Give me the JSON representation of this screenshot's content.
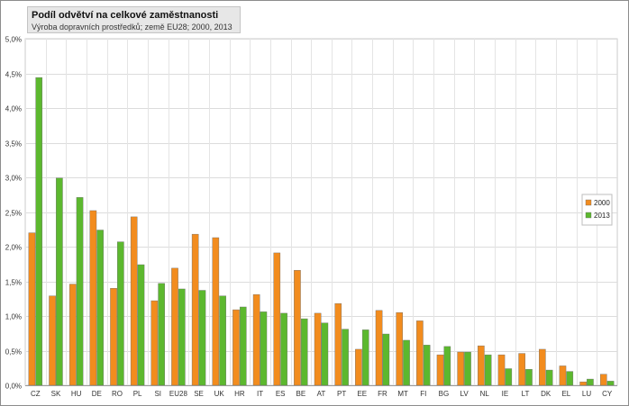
{
  "chart_data": {
    "type": "bar",
    "title": "Podíl odvětví na celkové zaměstnanosti",
    "subtitle": "Výroba dopravních prostředků; země EU28; 2000,  2013",
    "xlabel": "",
    "ylabel": "",
    "ylim": [
      0,
      5.0
    ],
    "y_ticks": [
      "0,0%",
      "0,5%",
      "1,0%",
      "1,5%",
      "2,0%",
      "2,5%",
      "3,0%",
      "3,5%",
      "4,0%",
      "4,5%",
      "5,0%"
    ],
    "y_unit": "%",
    "grid": true,
    "legend_position": "right",
    "categories": [
      "CZ",
      "SK",
      "HU",
      "DE",
      "RO",
      "PL",
      "SI",
      "EU28",
      "SE",
      "UK",
      "HR",
      "IT",
      "ES",
      "BE",
      "AT",
      "PT",
      "EE",
      "FR",
      "MT",
      "FI",
      "BG",
      "LV",
      "NL",
      "IE",
      "LT",
      "DK",
      "EL",
      "LU",
      "CY"
    ],
    "series": [
      {
        "name": "2000",
        "color": "#f28c1e",
        "values": [
          2.2,
          1.29,
          1.46,
          2.52,
          1.4,
          2.43,
          1.22,
          1.69,
          2.18,
          2.13,
          1.09,
          1.31,
          1.91,
          1.66,
          1.04,
          1.18,
          0.52,
          1.08,
          1.05,
          0.93,
          0.44,
          0.48,
          0.57,
          0.44,
          0.46,
          0.52,
          0.28,
          0.05,
          0.16
        ]
      },
      {
        "name": "2013",
        "color": "#5cb82e",
        "values": [
          4.44,
          2.99,
          2.71,
          2.24,
          2.07,
          1.74,
          1.47,
          1.39,
          1.37,
          1.29,
          1.13,
          1.06,
          1.04,
          0.96,
          0.9,
          0.81,
          0.8,
          0.74,
          0.65,
          0.58,
          0.56,
          0.48,
          0.44,
          0.24,
          0.23,
          0.22,
          0.2,
          0.09,
          0.06
        ]
      }
    ]
  }
}
